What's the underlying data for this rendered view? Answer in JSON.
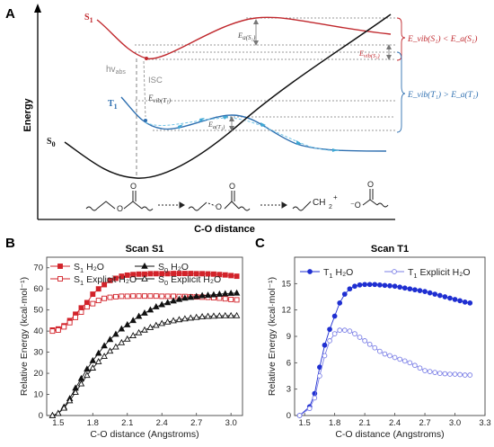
{
  "panel_a": {
    "letter": "A",
    "ylabel": "Energy",
    "xlabel": "C-O distance",
    "labels": {
      "s1": "S",
      "s1_sub": "1",
      "t1": "T",
      "t1_sub": "1",
      "s0": "S",
      "s0_sub": "0",
      "hv": "hv",
      "hv_sub": "abs",
      "isc": "ISC",
      "ea_s1": "E",
      "ea_s1_sub": "a(S₁)",
      "ea_t1": "E",
      "ea_t1_sub": "a(T₁)",
      "evib_t1_inner": "E",
      "evib_t1_inner_sub": "vib(T₁)",
      "evib_s1_small": "E",
      "evib_s1_small_sub": "vib(S₁)",
      "rel_s1": "E_vib(S₁) < E_a(S₁)",
      "rel_t1": "E_vib(T₁) > E_a(T₁)"
    },
    "colors": {
      "s1": "#c0282d",
      "t1": "#2e6fb0",
      "s0": "#111111",
      "arrow": "#3fa8d4"
    }
  },
  "chart_data": [
    {
      "type": "line",
      "panel": "B",
      "title": "Scan S1",
      "xlabel": "C-O distance (Angstroms)",
      "ylabel": "Relative Energy (kcal·mol⁻¹)",
      "xlim": [
        1.4,
        3.1
      ],
      "ylim": [
        0,
        75
      ],
      "xticks": [
        "1.5",
        "1.8",
        "2.1",
        "2.4",
        "2.7",
        "3.0"
      ],
      "yticks": [
        "0",
        "10",
        "20",
        "30",
        "40",
        "50",
        "60",
        "70"
      ],
      "x": [
        1.45,
        1.5,
        1.55,
        1.6,
        1.65,
        1.7,
        1.75,
        1.8,
        1.85,
        1.9,
        1.95,
        2.0,
        2.05,
        2.1,
        2.15,
        2.2,
        2.25,
        2.3,
        2.35,
        2.4,
        2.45,
        2.5,
        2.55,
        2.6,
        2.65,
        2.7,
        2.75,
        2.8,
        2.85,
        2.9,
        2.95,
        3.0,
        3.05
      ],
      "series": [
        {
          "name": "S₁ H₂O",
          "legend": "S",
          "legend_sub": "1",
          "legend_rest": " H₂O",
          "color": "#d2232a",
          "marker": "square-filled",
          "values": [
            40.5,
            41,
            42.5,
            45,
            48,
            51,
            53.5,
            57.5,
            60,
            62,
            64,
            65,
            66,
            66.5,
            66.8,
            67,
            67,
            67.2,
            67.2,
            67.2,
            67.2,
            67.3,
            67.3,
            67.3,
            67.3,
            67.2,
            67.2,
            67.1,
            67,
            66.8,
            66.6,
            66.3,
            66
          ]
        },
        {
          "name": "S₁ Explicit H₂O",
          "legend": "S",
          "legend_sub": "1",
          "legend_rest": " Explicit H₂O",
          "color": "#d2232a",
          "marker": "square-open",
          "values": [
            40,
            40.5,
            42,
            44,
            46.5,
            49,
            51.5,
            53,
            54.5,
            55.5,
            56,
            56.3,
            56.5,
            56.5,
            56.6,
            56.6,
            56.6,
            56.6,
            56.6,
            56.5,
            56.5,
            56.5,
            56.4,
            56.4,
            56.3,
            56.2,
            56.1,
            56,
            55.8,
            55.6,
            55.3,
            55,
            54.8
          ]
        },
        {
          "name": "S₀ H₂O",
          "legend": "S",
          "legend_sub": "0",
          "legend_rest": " H₂O",
          "color": "#111111",
          "marker": "triangle-filled",
          "values": [
            0,
            1,
            4,
            8,
            13,
            17.5,
            22,
            26,
            29.5,
            33,
            36,
            38.5,
            41,
            43,
            45,
            47,
            48.5,
            50,
            51.5,
            52.5,
            53.5,
            54.3,
            55,
            55.6,
            56,
            56.4,
            56.8,
            57,
            57.2,
            57.5,
            57.7,
            57.9,
            58
          ]
        },
        {
          "name": "S₀ Explicit H₂O",
          "legend": "S",
          "legend_sub": "0",
          "legend_rest": " Explicit H₂O",
          "color": "#111111",
          "marker": "triangle-open",
          "values": [
            0,
            1,
            3.5,
            7,
            11,
            15,
            19,
            22.5,
            25.5,
            28,
            30.5,
            32.5,
            34.5,
            36.2,
            37.8,
            39.2,
            40.5,
            41.7,
            42.7,
            43.6,
            44.3,
            44.9,
            45.4,
            45.8,
            46.2,
            46.5,
            46.8,
            47,
            47.1,
            47.2,
            47.3,
            47.3,
            47.3
          ]
        }
      ]
    },
    {
      "type": "line",
      "panel": "C",
      "title": "Scan T1",
      "xlabel": "C-O distance (Angstroms)",
      "ylabel": "Relative Energy (kcal·mol⁻¹)",
      "xlim": [
        1.4,
        3.3
      ],
      "ylim": [
        0,
        18
      ],
      "xticks": [
        "1.5",
        "1.8",
        "2.1",
        "2.4",
        "2.7",
        "3.0",
        "3.3"
      ],
      "yticks": [
        "0",
        "3",
        "6",
        "9",
        "12",
        "15"
      ],
      "x": [
        1.45,
        1.55,
        1.6,
        1.65,
        1.7,
        1.75,
        1.8,
        1.85,
        1.9,
        1.95,
        2.0,
        2.05,
        2.1,
        2.15,
        2.2,
        2.25,
        2.3,
        2.35,
        2.4,
        2.45,
        2.5,
        2.55,
        2.6,
        2.65,
        2.7,
        2.75,
        2.8,
        2.85,
        2.9,
        2.95,
        3.0,
        3.05,
        3.1,
        3.15
      ],
      "series": [
        {
          "name": "T₁ H₂O",
          "legend": "T",
          "legend_sub": "1",
          "legend_rest": " H₂O",
          "color": "#1f2fd1",
          "marker": "circle-filled",
          "values": [
            0,
            1,
            2.5,
            5.5,
            8,
            9.8,
            11.3,
            12.8,
            13.8,
            14.4,
            14.7,
            14.85,
            14.9,
            14.9,
            14.9,
            14.85,
            14.8,
            14.75,
            14.7,
            14.6,
            14.5,
            14.4,
            14.3,
            14.2,
            14.1,
            13.95,
            13.8,
            13.65,
            13.5,
            13.35,
            13.2,
            13.05,
            12.9,
            12.8
          ]
        },
        {
          "name": "T₁ Explicit H₂O",
          "legend": "T",
          "legend_sub": "1",
          "legend_rest": " Explicit H₂O",
          "color": "#7b7fe6",
          "marker": "circle-open",
          "values": [
            0,
            0.8,
            2,
            4.5,
            6.8,
            8.5,
            9.3,
            9.7,
            9.7,
            9.6,
            9.3,
            8.9,
            8.5,
            8.1,
            7.7,
            7.3,
            7,
            6.8,
            6.6,
            6.4,
            6.2,
            6,
            5.7,
            5.4,
            5.1,
            5,
            4.9,
            4.8,
            4.75,
            4.7,
            4.7,
            4.65,
            4.6,
            4.6
          ]
        }
      ]
    }
  ],
  "panel_b": {
    "letter": "B"
  },
  "panel_c": {
    "letter": "C"
  }
}
